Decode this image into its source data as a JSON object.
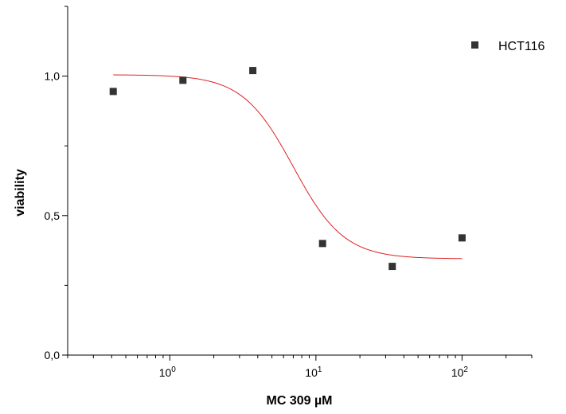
{
  "chart_data": {
    "type": "scatter",
    "xlabel": "MC 309 µM",
    "ylabel": "viability",
    "x_scale": "log",
    "xlim": [
      0.2,
      300
    ],
    "ylim": [
      0.0,
      1.25
    ],
    "x_tick_labels": [
      {
        "base": "10",
        "exp": "0",
        "value": 1
      },
      {
        "base": "10",
        "exp": "1",
        "value": 10
      },
      {
        "base": "10",
        "exp": "2",
        "value": 100
      }
    ],
    "y_tick_labels": [
      {
        "label": "0,0",
        "value": 0.0
      },
      {
        "label": "0,5",
        "value": 0.5
      },
      {
        "label": "1,0",
        "value": 1.0
      }
    ],
    "grid": false,
    "legend_position": "top-right",
    "series": [
      {
        "name": "HCT116",
        "marker": "square",
        "color": "#333333",
        "points": [
          {
            "x": 0.41,
            "y": 0.945
          },
          {
            "x": 1.23,
            "y": 0.985
          },
          {
            "x": 3.7,
            "y": 1.02
          },
          {
            "x": 11.1,
            "y": 0.4
          },
          {
            "x": 33.3,
            "y": 0.318
          },
          {
            "x": 100,
            "y": 0.42
          }
        ]
      }
    ],
    "fit_curve": {
      "color": "#e02020",
      "model": "sigmoid",
      "top": 1.005,
      "bottom": 0.345,
      "ic50": 7.0,
      "hill": 2.5,
      "x_range": [
        0.41,
        100
      ]
    }
  }
}
